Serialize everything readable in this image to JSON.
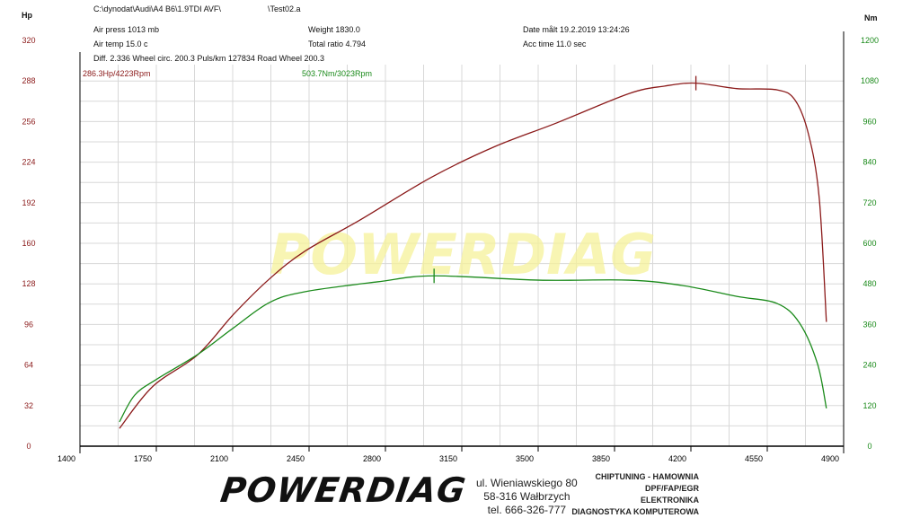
{
  "header": {
    "path": "C:\\dynodat\\Audi\\A4 B6\\1.9TDI AVF\\",
    "file": "\\Test02.a",
    "air_press": "Air press  1013 mb",
    "air_temp": "Air temp  15.0 c",
    "weight": "Weight  1830.0",
    "total_ratio": "Total ratio 4.794",
    "date": "Date målt 19.2.2019 13:24:26",
    "acc_time": "Acc time  11.0 sec",
    "diff": "Diff.   2.336   Wheel circ. 200.3   Puls/km  127834   Road Wheel 200.3"
  },
  "footer": {
    "logo": "POWERDIAG",
    "address": [
      "ul. Wieniawskiego 80",
      "58-316 Wałbrzych",
      "tel. 666-326-777"
    ],
    "services": [
      "CHIPTUNING - HAMOWNIA",
      "DPF/FAP/EGR",
      "ELEKTRONIKA",
      "DIAGNOSTYKA KOMPUTEROWA"
    ]
  },
  "chart_data": {
    "type": "line",
    "watermark": "POWERDIAG",
    "xlabel": "",
    "xlim": [
      1400,
      4900
    ],
    "xticks": [
      1400,
      1750,
      2100,
      2450,
      2800,
      3150,
      3500,
      3850,
      4200,
      4550,
      4900
    ],
    "y_left": {
      "label": "Hp",
      "lim": [
        0,
        320
      ],
      "ticks": [
        0,
        32,
        64,
        96,
        128,
        160,
        192,
        224,
        256,
        288,
        320
      ],
      "color": "#8b1a1a"
    },
    "y_right": {
      "label": "Nm",
      "lim": [
        0,
        1200
      ],
      "ticks": [
        0,
        120,
        240,
        360,
        480,
        600,
        720,
        840,
        960,
        1080,
        1200
      ],
      "color": "#1a8a1a"
    },
    "grid": true,
    "series": [
      {
        "axis": "left",
        "color": "#8b1a1a",
        "peak_label": "286.3Hp/4223Rpm",
        "peak": [
          4223,
          286.3
        ],
        "x": [
          1581,
          1733,
          1939,
          2104,
          2269,
          2433,
          2680,
          3010,
          3298,
          3586,
          3915,
          4080,
          4223,
          4410,
          4595,
          4677,
          4739,
          4788,
          4821
        ],
        "y": [
          14,
          47,
          72,
          104,
          132,
          154,
          178,
          212,
          236,
          255,
          278,
          284,
          286.3,
          282,
          281,
          273,
          246,
          196,
          98
        ]
      },
      {
        "axis": "right",
        "color": "#1a8a1a",
        "peak_label": "503.7Nm/3023Rpm",
        "peak": [
          3023,
          503.7
        ],
        "x": [
          1581,
          1651,
          1754,
          1939,
          2104,
          2269,
          2433,
          2763,
          3023,
          3504,
          3915,
          4163,
          4410,
          4595,
          4698,
          4780,
          4821
        ],
        "y": [
          72,
          151,
          199,
          271,
          350,
          425,
          457,
          486,
          503.7,
          491,
          491,
          475,
          443,
          422,
          364,
          244,
          112
        ]
      }
    ]
  }
}
